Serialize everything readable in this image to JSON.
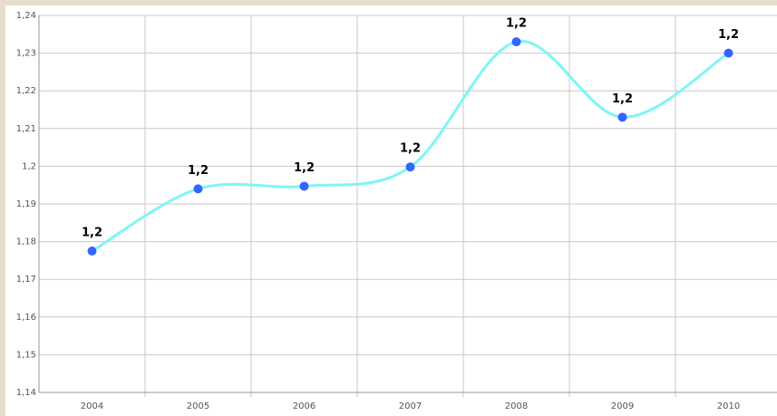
{
  "chart_data": {
    "type": "line",
    "categories": [
      "2004",
      "2005",
      "2006",
      "2007",
      "2008",
      "2009",
      "2010"
    ],
    "series": [
      {
        "color": "#7ff5f5",
        "marker_color": "#3366ff",
        "values": [
          1.1775,
          1.194,
          1.1947,
          1.1998,
          1.233,
          1.213,
          1.23
        ],
        "value_labels": [
          "1,2",
          "1,2",
          "1,2",
          "1,2",
          "1,2",
          "1,2",
          "1,2"
        ]
      }
    ],
    "ylim": [
      1.14,
      1.24
    ],
    "yticks": [
      {
        "value": 1.14,
        "label": "1,14"
      },
      {
        "value": 1.15,
        "label": "1,15"
      },
      {
        "value": 1.16,
        "label": "1,16"
      },
      {
        "value": 1.17,
        "label": "1,17"
      },
      {
        "value": 1.18,
        "label": "1,18"
      },
      {
        "value": 1.19,
        "label": "1,19"
      },
      {
        "value": 1.2,
        "label": "1,2"
      },
      {
        "value": 1.21,
        "label": "1,21"
      },
      {
        "value": 1.22,
        "label": "1,22"
      },
      {
        "value": 1.23,
        "label": "1,23"
      },
      {
        "value": 1.24,
        "label": "1,24"
      }
    ],
    "grid": true,
    "smooth": true
  }
}
